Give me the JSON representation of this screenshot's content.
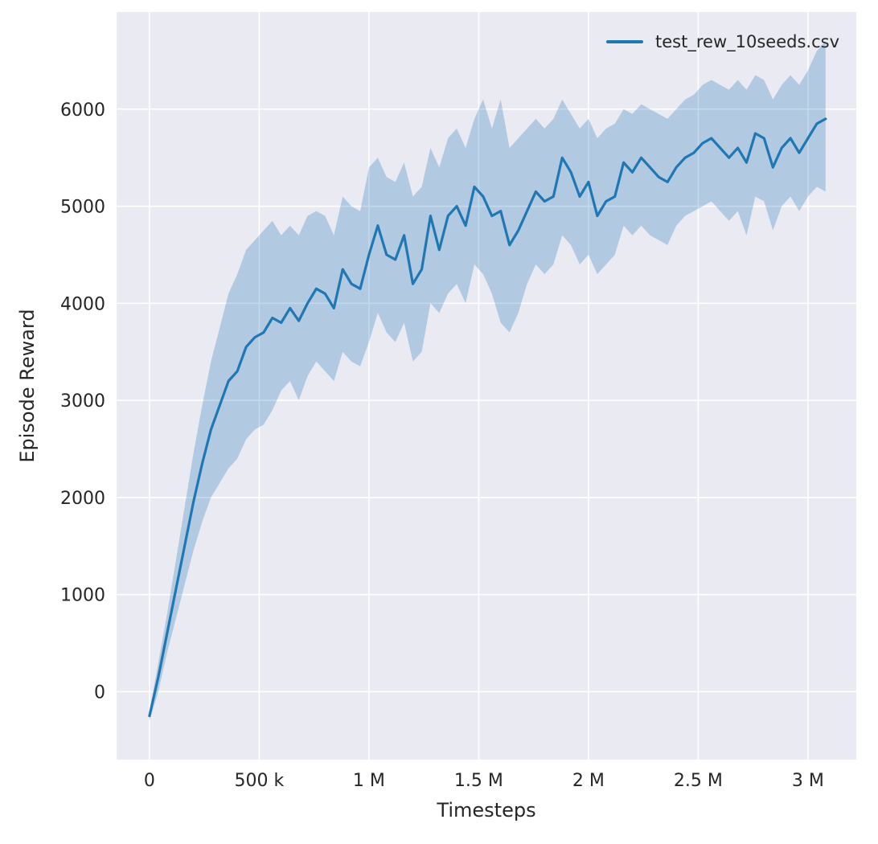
{
  "chart_data": {
    "type": "line",
    "title": "",
    "xlabel": "Timesteps",
    "ylabel": "Episode Reward",
    "xlim": [
      -150000,
      3220000
    ],
    "ylim": [
      -700,
      7000
    ],
    "grid": true,
    "legend_position": "upper right",
    "x_ticks": [
      0,
      500000,
      1000000,
      1500000,
      2000000,
      2500000,
      3000000
    ],
    "x_tick_labels": [
      "0",
      "500 k",
      "1 M",
      "1.5 M",
      "2 M",
      "2.5 M",
      "3 M"
    ],
    "y_ticks": [
      0,
      1000,
      2000,
      3000,
      4000,
      5000,
      6000
    ],
    "y_tick_labels": [
      "0",
      "1000",
      "2000",
      "3000",
      "4000",
      "5000",
      "6000"
    ],
    "colors": {
      "line": "#1f77b4",
      "band": "#1f77b4",
      "band_opacity": 0.27,
      "axes_bg": "#eaeaf2",
      "grid": "#ffffff",
      "text": "#262626",
      "figure_bg": "#ffffff"
    },
    "x": [
      0,
      40000,
      80000,
      120000,
      160000,
      200000,
      240000,
      280000,
      320000,
      360000,
      400000,
      440000,
      480000,
      520000,
      560000,
      600000,
      640000,
      680000,
      720000,
      760000,
      800000,
      840000,
      880000,
      920000,
      960000,
      1000000,
      1040000,
      1080000,
      1120000,
      1160000,
      1200000,
      1240000,
      1280000,
      1320000,
      1360000,
      1400000,
      1440000,
      1480000,
      1520000,
      1560000,
      1600000,
      1640000,
      1680000,
      1720000,
      1760000,
      1800000,
      1840000,
      1880000,
      1920000,
      1960000,
      2000000,
      2040000,
      2080000,
      2120000,
      2160000,
      2200000,
      2240000,
      2280000,
      2320000,
      2360000,
      2400000,
      2440000,
      2480000,
      2520000,
      2560000,
      2600000,
      2640000,
      2680000,
      2720000,
      2760000,
      2800000,
      2840000,
      2880000,
      2920000,
      2960000,
      3000000,
      3040000,
      3080000
    ],
    "series": [
      {
        "name": "test_rew_10seeds.csv",
        "values": [
          -250,
          150,
          600,
          1050,
          1500,
          1950,
          2350,
          2700,
          2950,
          3200,
          3300,
          3550,
          3650,
          3700,
          3850,
          3800,
          3950,
          3820,
          4000,
          4150,
          4100,
          3950,
          4350,
          4200,
          4150,
          4500,
          4800,
          4500,
          4450,
          4700,
          4200,
          4350,
          4900,
          4550,
          4900,
          5000,
          4800,
          5200,
          5100,
          4900,
          4950,
          4600,
          4750,
          4950,
          5150,
          5050,
          5100,
          5500,
          5350,
          5100,
          5250,
          4900,
          5050,
          5100,
          5450,
          5350,
          5500,
          5400,
          5300,
          5250,
          5400,
          5500,
          5550,
          5650,
          5700,
          5600,
          5500,
          5600,
          5450,
          5750,
          5700,
          5400,
          5600,
          5700,
          5550,
          5700,
          5850,
          5900
        ]
      }
    ],
    "band": {
      "lower": [
        -300,
        0,
        400,
        750,
        1100,
        1450,
        1750,
        2000,
        2150,
        2300,
        2400,
        2600,
        2700,
        2750,
        2900,
        3100,
        3200,
        3000,
        3250,
        3400,
        3300,
        3200,
        3500,
        3400,
        3350,
        3600,
        3900,
        3700,
        3600,
        3800,
        3400,
        3500,
        4000,
        3900,
        4100,
        4200,
        4000,
        4400,
        4300,
        4100,
        3800,
        3700,
        3900,
        4200,
        4400,
        4300,
        4400,
        4700,
        4600,
        4400,
        4500,
        4300,
        4400,
        4500,
        4800,
        4700,
        4800,
        4700,
        4650,
        4600,
        4800,
        4900,
        4950,
        5000,
        5050,
        4950,
        4850,
        4950,
        4700,
        5100,
        5050,
        4750,
        5000,
        5100,
        4950,
        5100,
        5200,
        5150
      ],
      "upper": [
        -200,
        300,
        800,
        1350,
        1900,
        2450,
        2950,
        3400,
        3750,
        4100,
        4300,
        4550,
        4650,
        4750,
        4850,
        4700,
        4800,
        4700,
        4900,
        4950,
        4900,
        4700,
        5100,
        5000,
        4950,
        5400,
        5500,
        5300,
        5250,
        5450,
        5100,
        5200,
        5600,
        5400,
        5700,
        5800,
        5600,
        5900,
        6100,
        5800,
        6100,
        5600,
        5700,
        5800,
        5900,
        5800,
        5900,
        6100,
        5950,
        5800,
        5900,
        5700,
        5800,
        5850,
        6000,
        5950,
        6050,
        6000,
        5950,
        5900,
        6000,
        6100,
        6150,
        6250,
        6300,
        6250,
        6200,
        6300,
        6200,
        6350,
        6300,
        6100,
        6250,
        6350,
        6250,
        6400,
        6600,
        6700
      ]
    }
  }
}
